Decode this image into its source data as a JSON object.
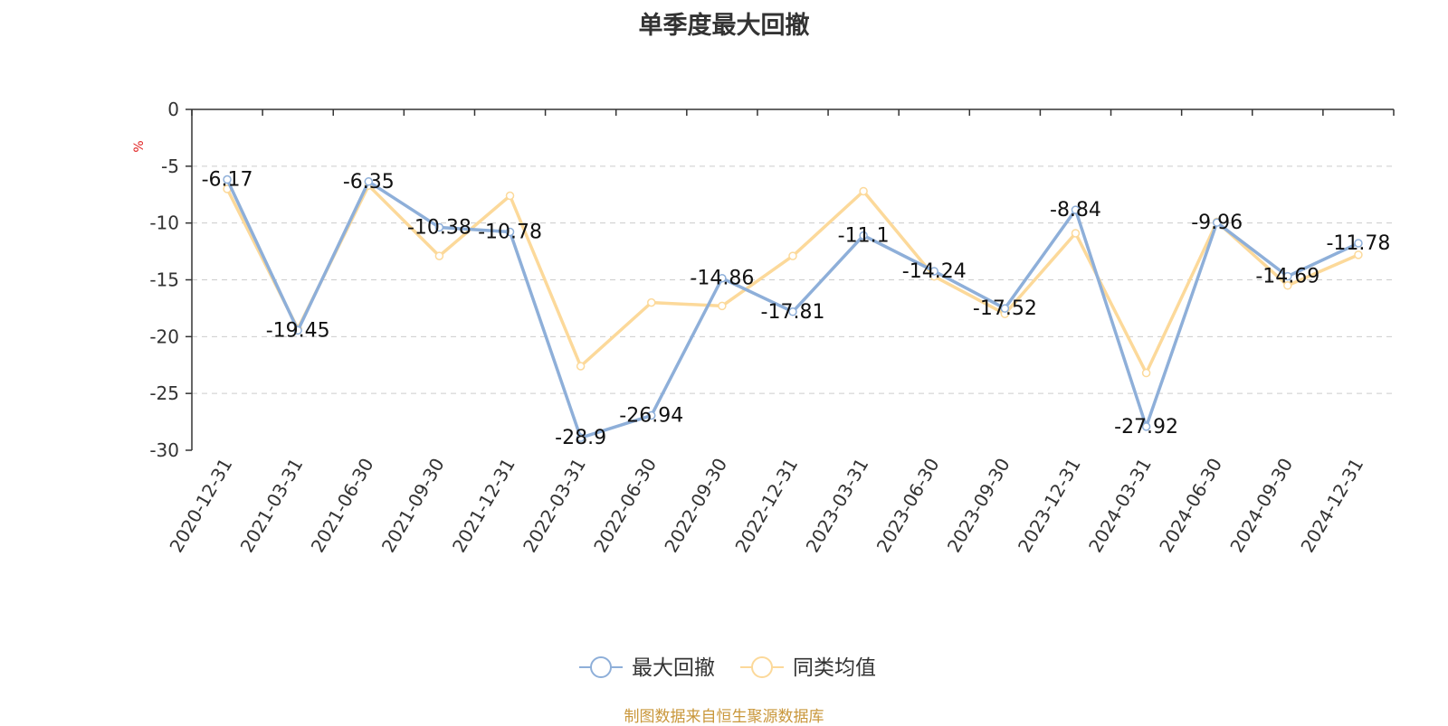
{
  "title": "单季度最大回撤",
  "source": "制图数据来自恒生聚源数据库",
  "chart_data": {
    "type": "line",
    "title": "单季度最大回撤",
    "ylabel": "%",
    "xlabel": "",
    "categories": [
      "2020-12-31",
      "2021-03-31",
      "2021-06-30",
      "2021-09-30",
      "2021-12-31",
      "2022-03-31",
      "2022-06-30",
      "2022-09-30",
      "2022-12-31",
      "2023-03-31",
      "2023-06-30",
      "2023-09-30",
      "2023-12-31",
      "2024-03-31",
      "2024-06-30",
      "2024-09-30",
      "2024-12-31"
    ],
    "ylim": [
      -30,
      0
    ],
    "yticks": [
      0,
      -5,
      -10,
      -15,
      -20,
      -25,
      -30
    ],
    "grid": true,
    "legend_position": "bottom-center",
    "series": [
      {
        "name": "最大回撤",
        "color": "#8eafd9",
        "values": [
          -6.17,
          -19.45,
          -6.35,
          -10.38,
          -10.78,
          -28.9,
          -26.94,
          -14.86,
          -17.81,
          -11.1,
          -14.24,
          -17.52,
          -8.84,
          -27.92,
          -9.96,
          -14.69,
          -11.78
        ],
        "labels": [
          "-6.17",
          "-19.45",
          "-6.35",
          "-10.38",
          "-10.78",
          "-28.9",
          "-26.94",
          "-14.86",
          "-17.81",
          "-11.1",
          "-14.24",
          "-17.52",
          "-8.84",
          "-27.92",
          "-9.96",
          "-14.69",
          "-11.78"
        ]
      },
      {
        "name": "同类均值",
        "color": "#fcd99a",
        "values": [
          -7.0,
          -19.3,
          -6.7,
          -12.9,
          -7.6,
          -22.6,
          -17.0,
          -17.3,
          -12.9,
          -7.2,
          -14.7,
          -18.0,
          -10.9,
          -23.2,
          -9.9,
          -15.5,
          -12.8
        ]
      }
    ]
  }
}
